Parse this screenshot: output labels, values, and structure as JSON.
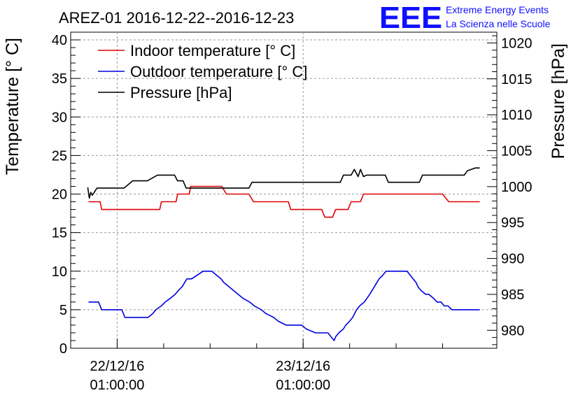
{
  "chart_data": {
    "type": "line",
    "title": "AREZ-01 2016-12-22--2016-12-23",
    "logo": {
      "mark": "EEE",
      "line1": "Extreme Energy Events",
      "line2": "La Scienza nelle Scuole",
      "color": "#1010ff"
    },
    "ylabel": "Temperature [° C]",
    "y2label": "Pressure [hPa]",
    "ylim": [
      0,
      41
    ],
    "y2lim": [
      977.5,
      1021.5
    ],
    "yticks": [
      "0",
      "5",
      "10",
      "15",
      "20",
      "25",
      "30",
      "35",
      "40"
    ],
    "y2ticks": [
      "980",
      "985",
      "990",
      "995",
      "1000",
      "1005",
      "1010",
      "1015",
      "1020"
    ],
    "xlim": [
      -5,
      50
    ],
    "x_unit": "hours since 22/12/16 00:00",
    "xticks": [
      {
        "x": 1,
        "date": "22/12/16",
        "time": "01:00:00"
      },
      {
        "x": 25,
        "date": "23/12/16",
        "time": "01:00:00"
      }
    ],
    "legend_position": "top-left",
    "series": [
      {
        "name": "Indoor temperature [° C]",
        "axis": "left",
        "color": "#e00000",
        "x": [
          -2.7,
          -1.7,
          -1.2,
          -1.0,
          1.4,
          3.8,
          4.0,
          6.5,
          6.7,
          8.6,
          8.8,
          10.3,
          10.5,
          12.3,
          13.0,
          14.5,
          15.1,
          18.0,
          18.6,
          20.2,
          20.7,
          23.1,
          23.4,
          24.7,
          25.1,
          27.4,
          27.8,
          28.8,
          29.2,
          30.8,
          31.2,
          32.4,
          32.8,
          34.4,
          34.8,
          38.4,
          38.8,
          39.6,
          40.0,
          41.0,
          41.4,
          43.0,
          43.8,
          47.8
        ],
        "values": [
          19,
          19,
          19,
          18,
          18,
          18,
          18,
          18,
          19,
          19,
          20,
          20,
          21,
          21,
          21,
          21,
          20,
          20,
          19,
          19,
          19,
          19,
          18,
          18,
          18,
          18,
          17,
          17,
          18,
          18,
          19,
          19,
          20,
          20,
          20,
          20,
          20,
          20,
          20,
          20,
          20,
          20,
          19,
          19
        ]
      },
      {
        "name": "Outdoor temperature [° C]",
        "axis": "left",
        "color": "#0000e0",
        "x": [
          -2.7,
          -1.8,
          -1.4,
          -1.0,
          0.4,
          0.8,
          1.6,
          2.0,
          4.6,
          5.0,
          5.6,
          6.0,
          6.7,
          7.2,
          7.9,
          8.5,
          8.9,
          9.4,
          10.0,
          10.6,
          12.1,
          12.6,
          13.2,
          13.8,
          14.4,
          14.8,
          15.4,
          16.0,
          16.6,
          17.2,
          18.1,
          18.7,
          19.6,
          20.2,
          21.2,
          21.8,
          22.8,
          23.4,
          24.8,
          25.4,
          26.6,
          27.2,
          28.2,
          28.6,
          29.0,
          29.2,
          29.6,
          30.2,
          30.5,
          31.0,
          31.4,
          31.9,
          32.3,
          32.9,
          33.6,
          34.2,
          34.8,
          35.3,
          35.7,
          36.2,
          38.4,
          38.8,
          39.2,
          39.6,
          39.8,
          40.2,
          40.8,
          41.2,
          41.8,
          42.3,
          42.8,
          43.2,
          43.7,
          44.2,
          45.2,
          45.6,
          46.2,
          46.6,
          47.2,
          47.8
        ],
        "values": [
          6,
          6,
          6,
          5,
          5,
          5,
          5,
          4,
          4,
          4,
          4.5,
          5,
          5.5,
          6,
          6.5,
          7,
          7.5,
          8,
          9,
          9,
          10,
          10,
          10,
          9.5,
          9,
          8.5,
          8,
          7.5,
          7,
          6.5,
          6,
          5.5,
          5,
          4.5,
          4,
          3.5,
          3,
          3,
          3,
          2.5,
          2,
          2,
          2,
          1.5,
          1,
          1.5,
          2,
          2.5,
          3,
          3.5,
          4,
          5,
          5.5,
          6,
          7,
          8,
          9,
          9.5,
          10,
          10,
          10,
          9.5,
          9,
          8.5,
          8,
          7.5,
          7,
          7,
          6.5,
          6,
          6,
          5.5,
          5.5,
          5,
          5,
          5,
          5,
          5,
          5,
          5
        ]
      },
      {
        "name": "Pressure [hPa]",
        "axis": "right",
        "color": "#000000",
        "x": [
          -2.8,
          -2.6,
          -2.4,
          -2.2,
          -1.6,
          -1.0,
          -0.2,
          0.6,
          1.6,
          1.9,
          3.0,
          3.2,
          4.6,
          4.9,
          6.2,
          6.4,
          8.2,
          8.4,
          8.8,
          9.5,
          9.9,
          13.3,
          13.7,
          18.0,
          18.4,
          22.6,
          22.8,
          29.8,
          30.2,
          31.2,
          31.6,
          32.1,
          32.4,
          32.8,
          33.2,
          33.6,
          34.0,
          35.6,
          36.0,
          38.3,
          38.7,
          40.0,
          40.4,
          42.0,
          42.4,
          45.8,
          46.2,
          47.2,
          47.8
        ],
        "values": [
          999.9,
          998.4,
          999.2,
          998.8,
          999.8,
          999.8,
          999.8,
          999.8,
          999.8,
          999.8,
          1000.8,
          1000.8,
          1000.8,
          1000.8,
          1001.6,
          1001.6,
          1001.6,
          1001.6,
          1000.8,
          1000.8,
          999.8,
          999.8,
          999.8,
          999.8,
          1000.6,
          1000.6,
          1000.6,
          1000.6,
          1001.6,
          1001.6,
          1002.4,
          1001.4,
          1002.4,
          1001.4,
          1001.6,
          1001.6,
          1001.6,
          1001.6,
          1000.6,
          1000.6,
          1000.6,
          1000.6,
          1001.6,
          1001.6,
          1001.6,
          1001.6,
          1002.2,
          1002.6,
          1002.6
        ]
      }
    ]
  }
}
